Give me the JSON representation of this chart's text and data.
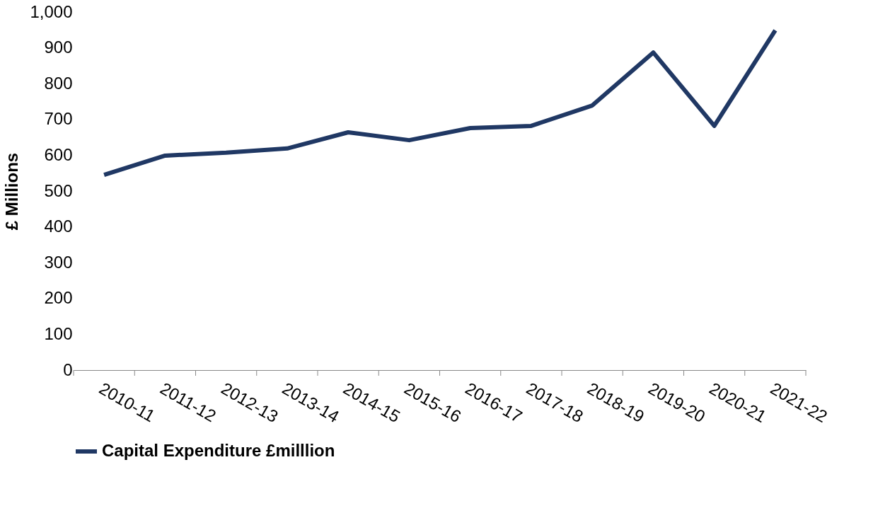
{
  "chart_data": {
    "type": "line",
    "ylabel": "£ Millions",
    "categories": [
      "2010-11",
      "2011-12",
      "2012-13",
      "2013-14",
      "2014-15",
      "2015-16",
      "2016-17",
      "2017-18",
      "2018-19",
      "2019-20",
      "2020-21",
      "2021-22"
    ],
    "series": [
      {
        "name": "Capital Expenditure £milllion",
        "color": "#203864",
        "values": [
          545,
          599,
          607,
          619,
          664,
          642,
          676,
          682,
          739,
          887,
          682,
          949
        ]
      }
    ],
    "ylim": [
      0,
      1000
    ],
    "yticks": [
      0,
      {
        "value": 100,
        "label": "100"
      },
      200,
      300,
      400,
      500,
      600,
      700,
      800,
      900,
      {
        "value": 1000,
        "label": "1,000"
      }
    ],
    "grid": false,
    "legend": "bottom",
    "marker": "none",
    "line_style": "solid"
  }
}
